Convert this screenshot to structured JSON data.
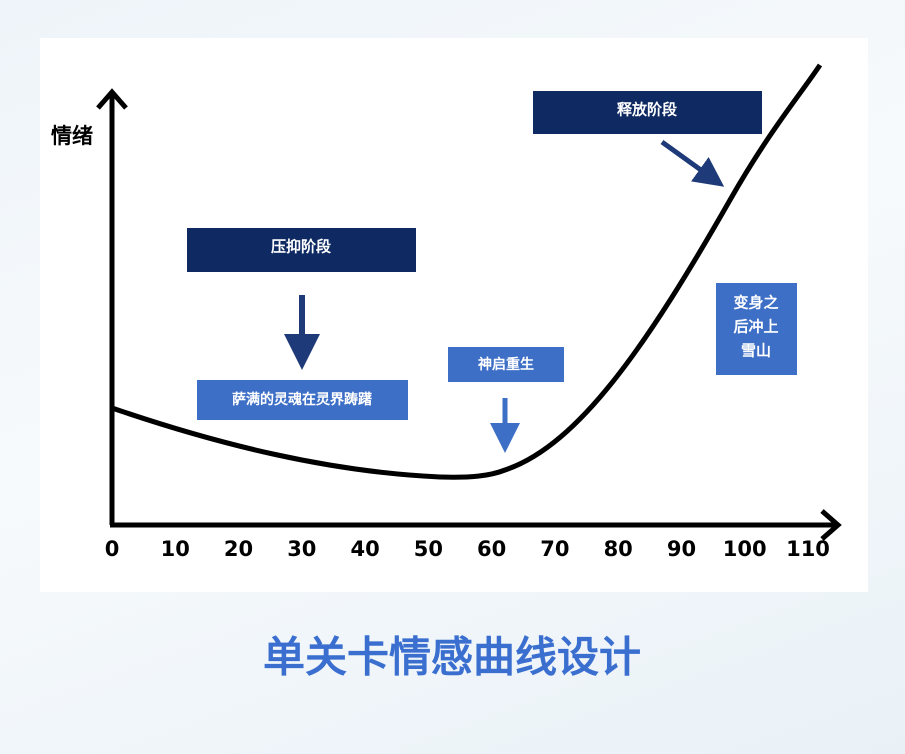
{
  "diagram": {
    "y_axis_label": "情绪",
    "x_ticks": [
      0,
      10,
      20,
      30,
      40,
      50,
      60,
      70,
      80,
      90,
      100,
      110
    ],
    "stages": {
      "release": "释放阶段",
      "suppress": "压抑阶段",
      "wander": "萨满的灵魂在灵界踌躇",
      "rebirth": "神启重生",
      "transform": [
        "变身之",
        "后冲上",
        "雪山"
      ]
    }
  },
  "title": "单关卡情感曲线设计"
}
